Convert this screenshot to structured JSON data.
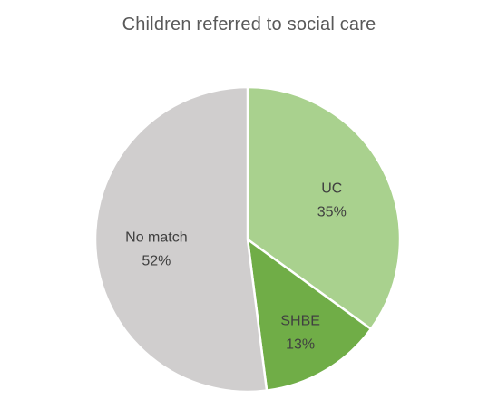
{
  "chart_data": {
    "type": "pie",
    "title": "Children referred to social care",
    "categories": [
      "UC",
      "SHBE",
      "No match"
    ],
    "values": [
      35,
      13,
      52
    ],
    "value_labels": [
      "35%",
      "13%",
      "52%"
    ],
    "colors": [
      "#a9d18e",
      "#70ad47",
      "#d0cece"
    ],
    "start_angle_deg": 0,
    "direction": "clockwise",
    "legend": "none",
    "data_labels": "inside"
  }
}
